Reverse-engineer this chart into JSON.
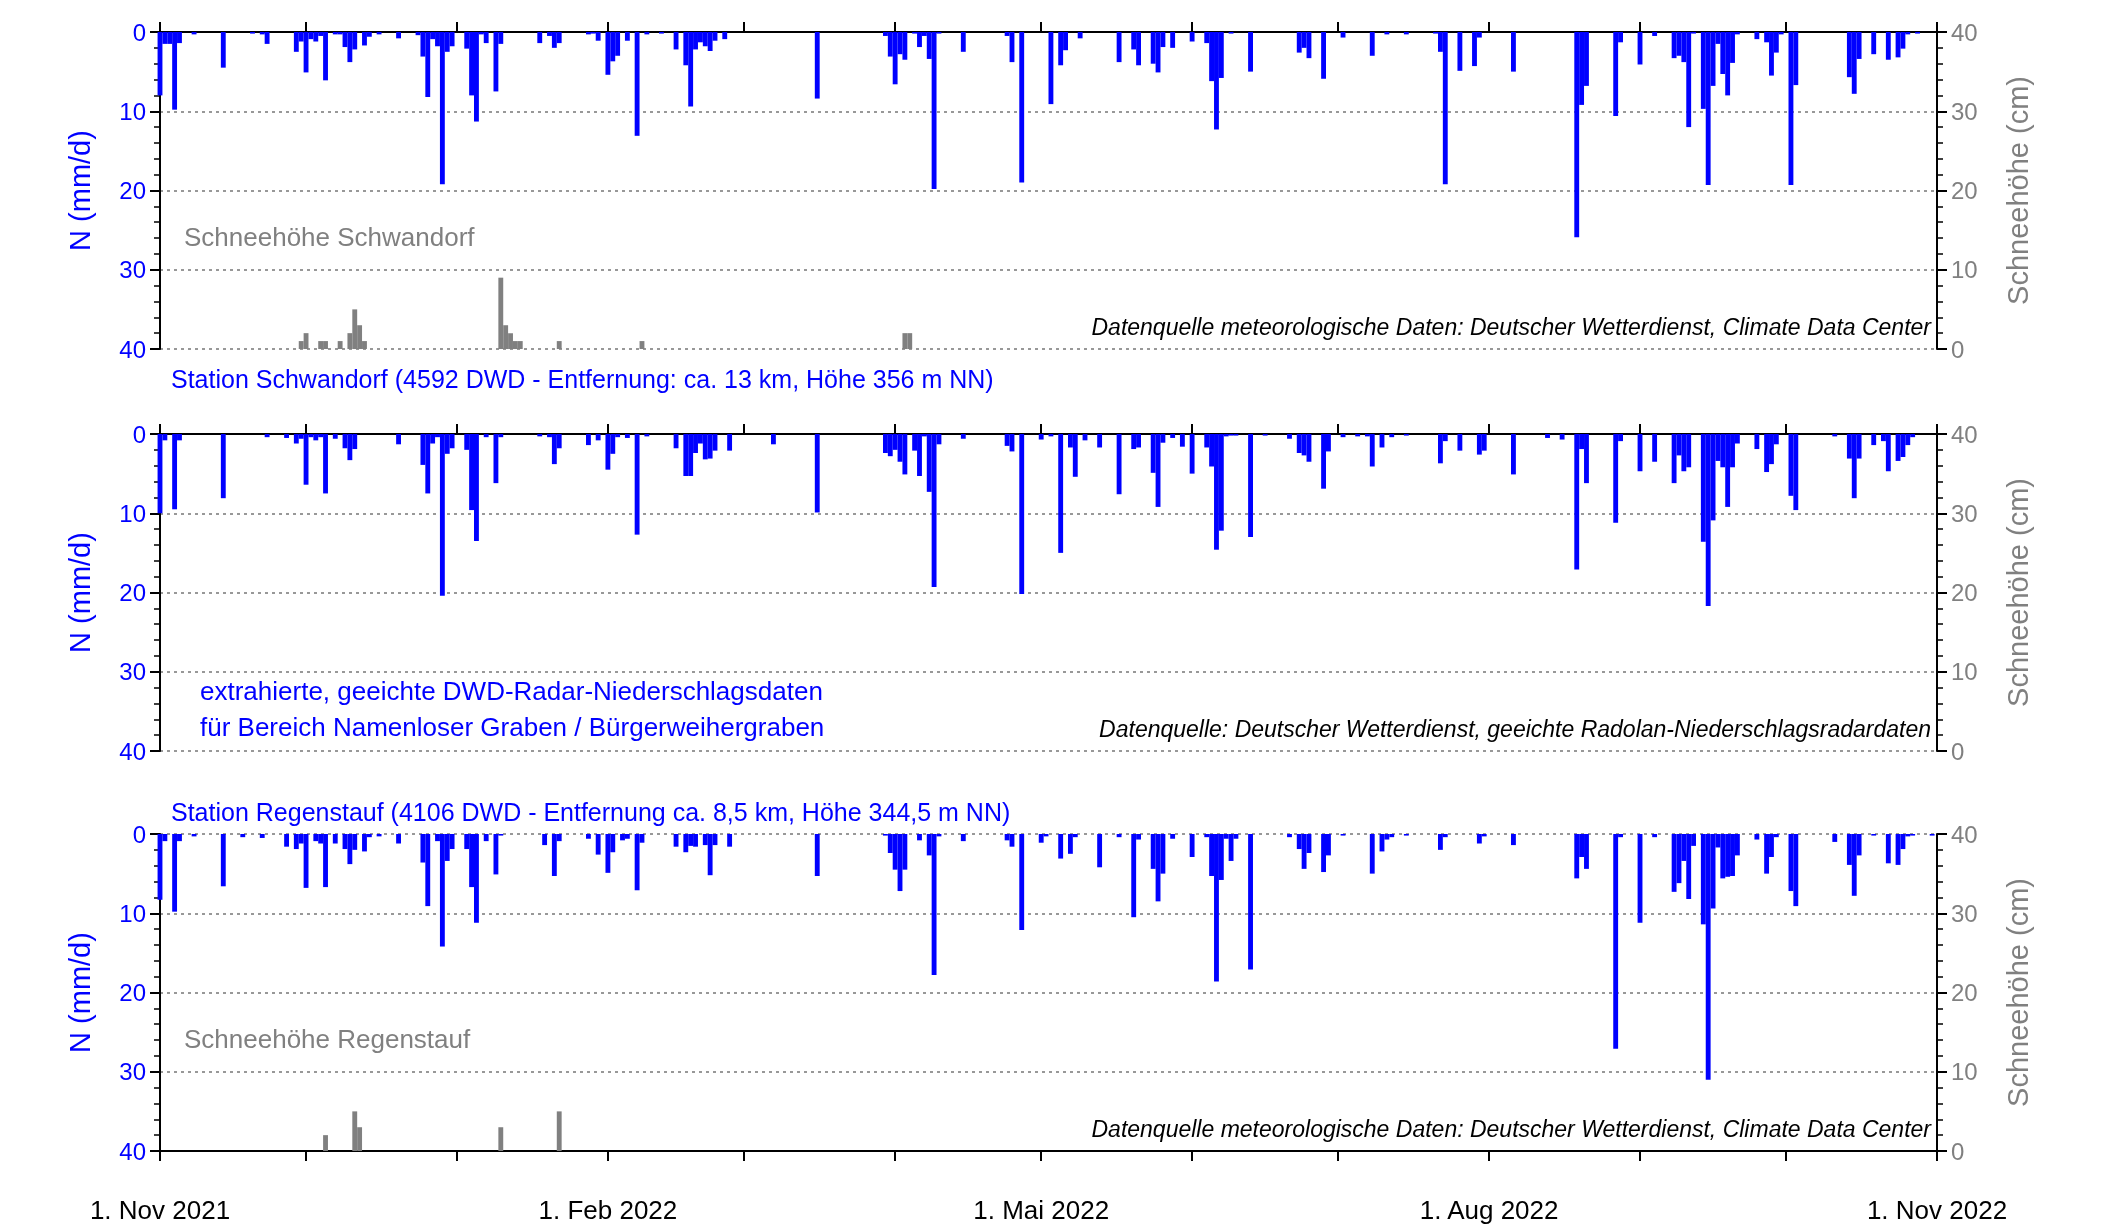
{
  "chart_data": [
    {
      "type": "bar",
      "title": "Station Schwandorf (4592 DWD - Entfernung: ca. 13 km, Höhe 356 m NN)",
      "ylabel": "N (mm/d)",
      "y2label": "Schneehöhe (cm)",
      "annotations": [
        "Schneehöhe Schwandorf",
        "Datenquelle meteorologische Daten: Deutscher Wetterdienst, Climate Data Center"
      ],
      "xlim": [
        "2021-11-01",
        "2022-11-01"
      ],
      "xticks": [
        {
          "value": "2021-11-01",
          "label": null
        },
        {
          "value": "2021-12-01",
          "label": null
        },
        {
          "value": "2022-01-01",
          "label": null
        },
        {
          "value": "2022-02-01",
          "label": null
        },
        {
          "value": "2022-03-01",
          "label": null
        },
        {
          "value": "2022-04-01",
          "label": null
        },
        {
          "value": "2022-05-01",
          "label": null
        },
        {
          "value": "2022-06-01",
          "label": null
        },
        {
          "value": "2022-07-01",
          "label": null
        },
        {
          "value": "2022-08-01",
          "label": null
        },
        {
          "value": "2022-09-01",
          "label": null
        },
        {
          "value": "2022-10-01",
          "label": null
        },
        {
          "value": "2022-11-01",
          "label": null
        }
      ],
      "ylim": [
        40,
        0
      ],
      "yticks": [
        0,
        10,
        20,
        30,
        40
      ],
      "y2lim": [
        0,
        40
      ],
      "y2ticks": [
        0,
        10,
        20,
        30,
        40
      ],
      "grid": "y",
      "tick_labels": "y",
      "series": [
        {
          "color": "#0000ff",
          "x": [
            "2021-11-01",
            "2021-11-02",
            "2021-11-03",
            "2021-11-04",
            "2021-11-05",
            "2021-11-08",
            "2021-11-14",
            "2021-11-20",
            "2021-11-22",
            "2021-11-23",
            "2021-11-29",
            "2021-11-30",
            "2021-12-01",
            "2021-12-02",
            "2021-12-03",
            "2021-12-04",
            "2021-12-05",
            "2021-12-07",
            "2021-12-08",
            "2021-12-09",
            "2021-12-10",
            "2021-12-11",
            "2021-12-13",
            "2021-12-14",
            "2021-12-16",
            "2021-12-20",
            "2021-12-24",
            "2021-12-25",
            "2021-12-26",
            "2021-12-27",
            "2021-12-28",
            "2021-12-29",
            "2021-12-30",
            "2021-12-31",
            "2022-01-03",
            "2022-01-04",
            "2022-01-05",
            "2022-01-06",
            "2022-01-07",
            "2022-01-09",
            "2022-01-10",
            "2022-01-18",
            "2022-01-20",
            "2022-01-21",
            "2022-01-22",
            "2022-01-28",
            "2022-01-29",
            "2022-01-30",
            "2022-02-01",
            "2022-02-02",
            "2022-02-03",
            "2022-02-05",
            "2022-02-07",
            "2022-02-09",
            "2022-02-12",
            "2022-02-15",
            "2022-02-17",
            "2022-02-18",
            "2022-02-19",
            "2022-02-20",
            "2022-02-21",
            "2022-02-22",
            "2022-02-23",
            "2022-02-25",
            "2022-03-16",
            "2022-03-30",
            "2022-03-31",
            "2022-04-01",
            "2022-04-02",
            "2022-04-03",
            "2022-04-05",
            "2022-04-06",
            "2022-04-07",
            "2022-04-08",
            "2022-04-09",
            "2022-04-10",
            "2022-04-15",
            "2022-04-24",
            "2022-04-25",
            "2022-04-27",
            "2022-05-03",
            "2022-05-05",
            "2022-05-06",
            "2022-05-09",
            "2022-05-17",
            "2022-05-20",
            "2022-05-21",
            "2022-05-24",
            "2022-05-25",
            "2022-05-26",
            "2022-05-28",
            "2022-06-01",
            "2022-06-04",
            "2022-06-05",
            "2022-06-06",
            "2022-06-07",
            "2022-06-09",
            "2022-06-13",
            "2022-06-23",
            "2022-06-24",
            "2022-06-25",
            "2022-06-28",
            "2022-07-02",
            "2022-07-08",
            "2022-07-11",
            "2022-07-15",
            "2022-07-21",
            "2022-07-22",
            "2022-07-23",
            "2022-07-26",
            "2022-07-29",
            "2022-07-30",
            "2022-08-06",
            "2022-08-19",
            "2022-08-20",
            "2022-08-21",
            "2022-08-27",
            "2022-08-28",
            "2022-09-01",
            "2022-09-04",
            "2022-09-08",
            "2022-09-09",
            "2022-09-10",
            "2022-09-11",
            "2022-09-12",
            "2022-09-14",
            "2022-09-15",
            "2022-09-16",
            "2022-09-17",
            "2022-09-18",
            "2022-09-19",
            "2022-09-20",
            "2022-09-21",
            "2022-09-25",
            "2022-09-27",
            "2022-09-28",
            "2022-09-29",
            "2022-09-30",
            "2022-10-02",
            "2022-10-03",
            "2022-10-14",
            "2022-10-15",
            "2022-10-16",
            "2022-10-19",
            "2022-10-22",
            "2022-10-24",
            "2022-10-25",
            "2022-10-26",
            "2022-10-28"
          ],
          "values": [
            8.0,
            1.5,
            1.5,
            9.8,
            1.4,
            0.3,
            4.5,
            0.2,
            0.3,
            1.5,
            2.5,
            1.2,
            5.1,
            0.9,
            1.2,
            0.5,
            6.1,
            0.3,
            0.3,
            1.9,
            3.8,
            2.2,
            1.7,
            0.6,
            0.3,
            0.8,
            0.4,
            3.1,
            8.2,
            0.9,
            1.8,
            19.2,
            2.5,
            1.8,
            2.1,
            8.0,
            11.3,
            0.3,
            1.4,
            7.5,
            1.5,
            1.4,
            0.5,
            2.0,
            1.4,
            0.3,
            0.2,
            1.1,
            5.4,
            3.7,
            3.0,
            1.1,
            13.1,
            0.3,
            0.2,
            2.2,
            4.2,
            9.4,
            2.2,
            1.3,
            1.8,
            2.4,
            1.1,
            0.9,
            8.4,
            0.5,
            3.1,
            6.6,
            2.8,
            3.5,
            0.2,
            1.9,
            0.5,
            3.4,
            19.8,
            0.2,
            2.5,
            0.5,
            3.8,
            19.0,
            9.1,
            4.2,
            2.3,
            0.8,
            3.8,
            2.2,
            4.2,
            4.0,
            5.1,
            1.9,
            2.0,
            1.2,
            1.4,
            6.2,
            12.3,
            5.8,
            0.2,
            5.0,
            2.6,
            2.0,
            3.3,
            5.9,
            0.7,
            3.0,
            0.3,
            0.3,
            0.2,
            2.5,
            19.2,
            4.9,
            4.3,
            0.7,
            5.0,
            25.9,
            9.2,
            6.8,
            10.6,
            1.3,
            4.1,
            0.5,
            3.3,
            3.0,
            3.8,
            12.0,
            0.2,
            9.7,
            19.3,
            6.8,
            1.5,
            5.3,
            8.0,
            3.9,
            0.3,
            0.9,
            1.3,
            5.5,
            2.6,
            0.3,
            19.3,
            6.7,
            5.7,
            7.8,
            3.4,
            2.8,
            3.5,
            3.2,
            2.1,
            0.3,
            0.2
          ]
        },
        {
          "color": "#808080",
          "axis": "y2",
          "x": [
            "2021-11-30",
            "2021-12-01",
            "2021-12-04",
            "2021-12-05",
            "2021-12-08",
            "2021-12-10",
            "2021-12-11",
            "2021-12-12",
            "2021-12-13",
            "2022-01-10",
            "2022-01-11",
            "2022-01-12",
            "2022-01-13",
            "2022-01-14",
            "2022-01-22",
            "2022-02-08",
            "2022-04-03",
            "2022-04-04"
          ],
          "values": [
            1,
            2,
            1,
            1,
            1,
            2,
            5,
            3,
            1,
            9,
            3,
            2,
            1,
            1,
            1,
            1,
            2,
            2
          ]
        }
      ]
    },
    {
      "type": "bar",
      "ylabel": "N (mm/d)",
      "y2label": "Schneehöhe (cm)",
      "annotations": [
        "extrahierte, geeichte DWD-Radar-Niederschlagsdaten",
        "für Bereich Namenloser Graben / Bürgerweihergraben",
        "Datenquelle: Deutscher Wetterdienst, geeichte Radolan-Niederschlagsradardaten"
      ],
      "xlim": [
        "2021-11-01",
        "2022-11-01"
      ],
      "xticks": [
        {
          "value": "2021-11-01",
          "label": null
        },
        {
          "value": "2021-12-01",
          "label": null
        },
        {
          "value": "2022-01-01",
          "label": null
        },
        {
          "value": "2022-02-01",
          "label": null
        },
        {
          "value": "2022-03-01",
          "label": null
        },
        {
          "value": "2022-04-01",
          "label": null
        },
        {
          "value": "2022-05-01",
          "label": null
        },
        {
          "value": "2022-06-01",
          "label": null
        },
        {
          "value": "2022-07-01",
          "label": null
        },
        {
          "value": "2022-08-01",
          "label": null
        },
        {
          "value": "2022-09-01",
          "label": null
        },
        {
          "value": "2022-10-01",
          "label": null
        },
        {
          "value": "2022-11-01",
          "label": null
        }
      ],
      "ylim": [
        40,
        0
      ],
      "yticks": [
        0,
        10,
        20,
        30,
        40
      ],
      "y2lim": [
        0,
        40
      ],
      "y2ticks": [
        0,
        10,
        20,
        30,
        40
      ],
      "grid": "y",
      "tick_labels": "y",
      "series": [
        {
          "color": "#0000ff",
          "x": [
            "2021-11-01",
            "2021-11-02",
            "2021-11-04",
            "2021-11-05",
            "2021-11-14",
            "2021-11-23",
            "2021-11-27",
            "2021-11-29",
            "2021-11-30",
            "2021-12-01",
            "2021-12-02",
            "2021-12-03",
            "2021-12-04",
            "2021-12-05",
            "2021-12-07",
            "2021-12-09",
            "2021-12-10",
            "2021-12-11",
            "2021-12-20",
            "2021-12-25",
            "2021-12-26",
            "2021-12-27",
            "2021-12-28",
            "2021-12-29",
            "2021-12-30",
            "2021-12-31",
            "2022-01-03",
            "2022-01-04",
            "2022-01-05",
            "2022-01-07",
            "2022-01-09",
            "2022-01-10",
            "2022-01-18",
            "2022-01-20",
            "2022-01-21",
            "2022-01-22",
            "2022-01-28",
            "2022-01-30",
            "2022-02-01",
            "2022-02-02",
            "2022-02-03",
            "2022-02-05",
            "2022-02-07",
            "2022-02-09",
            "2022-02-15",
            "2022-02-17",
            "2022-02-18",
            "2022-02-19",
            "2022-02-20",
            "2022-02-21",
            "2022-02-22",
            "2022-02-23",
            "2022-02-26",
            "2022-03-07",
            "2022-03-16",
            "2022-03-30",
            "2022-03-31",
            "2022-04-01",
            "2022-04-02",
            "2022-04-03",
            "2022-04-05",
            "2022-04-06",
            "2022-04-07",
            "2022-04-08",
            "2022-04-09",
            "2022-04-10",
            "2022-04-15",
            "2022-04-24",
            "2022-04-25",
            "2022-04-27",
            "2022-05-01",
            "2022-05-03",
            "2022-05-05",
            "2022-05-07",
            "2022-05-08",
            "2022-05-10",
            "2022-05-13",
            "2022-05-17",
            "2022-05-20",
            "2022-05-21",
            "2022-05-24",
            "2022-05-25",
            "2022-05-26",
            "2022-05-28",
            "2022-05-30",
            "2022-06-01",
            "2022-06-04",
            "2022-06-05",
            "2022-06-06",
            "2022-06-07",
            "2022-06-08",
            "2022-06-09",
            "2022-06-10",
            "2022-06-13",
            "2022-06-16",
            "2022-06-21",
            "2022-06-23",
            "2022-06-24",
            "2022-06-25",
            "2022-06-28",
            "2022-06-29",
            "2022-07-02",
            "2022-07-05",
            "2022-07-07",
            "2022-07-08",
            "2022-07-10",
            "2022-07-12",
            "2022-07-15",
            "2022-07-22",
            "2022-07-23",
            "2022-07-26",
            "2022-07-30",
            "2022-07-31",
            "2022-08-06",
            "2022-08-13",
            "2022-08-16",
            "2022-08-19",
            "2022-08-20",
            "2022-08-21",
            "2022-08-27",
            "2022-08-28",
            "2022-09-01",
            "2022-09-04",
            "2022-09-08",
            "2022-09-09",
            "2022-09-10",
            "2022-09-11",
            "2022-09-14",
            "2022-09-15",
            "2022-09-16",
            "2022-09-17",
            "2022-09-18",
            "2022-09-19",
            "2022-09-20",
            "2022-09-21",
            "2022-09-25",
            "2022-09-27",
            "2022-09-28",
            "2022-09-29",
            "2022-10-02",
            "2022-10-03",
            "2022-10-11",
            "2022-10-14",
            "2022-10-15",
            "2022-10-16",
            "2022-10-19",
            "2022-10-21",
            "2022-10-22",
            "2022-10-24",
            "2022-10-25",
            "2022-10-26",
            "2022-10-27"
          ],
          "values": [
            10.0,
            0.8,
            9.5,
            0.8,
            8.1,
            0.4,
            0.5,
            1.2,
            0.6,
            6.4,
            0.4,
            0.8,
            0.4,
            7.5,
            0.6,
            1.8,
            3.3,
            1.9,
            1.3,
            3.9,
            7.5,
            1.2,
            0.4,
            20.4,
            2.5,
            1.8,
            2.0,
            9.6,
            13.5,
            0.4,
            6.2,
            0.4,
            0.3,
            0.4,
            3.8,
            1.8,
            1.4,
            0.8,
            4.5,
            2.5,
            0.4,
            0.5,
            12.7,
            0.3,
            1.8,
            5.3,
            5.3,
            2.4,
            1.2,
            3.2,
            3.1,
            2.1,
            2.1,
            1.3,
            9.9,
            2.4,
            2.8,
            2.0,
            3.5,
            5.1,
            2.1,
            5.3,
            0.3,
            7.3,
            19.3,
            1.3,
            0.6,
            1.5,
            2.2,
            20.2,
            0.7,
            0.3,
            15.0,
            1.7,
            5.4,
            0.8,
            1.7,
            7.6,
            1.9,
            1.7,
            4.9,
            9.2,
            1.1,
            0.5,
            1.6,
            5.0,
            1.7,
            4.1,
            14.6,
            12.2,
            0.3,
            0.2,
            0.2,
            13.0,
            0.2,
            0.6,
            2.4,
            2.7,
            3.5,
            6.9,
            2.2,
            0.4,
            0.3,
            0.3,
            4.1,
            1.7,
            0.4,
            0.2,
            3.7,
            0.9,
            2.1,
            2.6,
            2.1,
            5.1,
            0.5,
            0.7,
            17.1,
            1.9,
            6.2,
            11.2,
            0.9,
            4.7,
            3.5,
            6.2,
            2.7,
            4.7,
            4.2,
            13.6,
            21.7,
            10.9,
            3.4,
            4.2,
            9.2,
            4.2,
            1.2,
            1.9,
            4.8,
            3.8,
            1.3,
            7.8,
            9.6,
            0.3,
            3.1,
            8.1,
            3.1,
            1.4,
            0.9,
            4.7,
            3.4,
            2.9,
            1.4,
            0.4
          ]
        }
      ]
    },
    {
      "type": "bar",
      "title": "Station Regenstauf (4106 DWD - Entfernung ca. 8,5 km, Höhe 344,5 m NN)",
      "ylabel": "N (mm/d)",
      "y2label": "Schneehöhe (cm)",
      "annotations": [
        "Schneehöhe Regenstauf",
        "Datenquelle meteorologische Daten: Deutscher Wetterdienst, Climate Data Center"
      ],
      "xlim": [
        "2021-11-01",
        "2022-11-01"
      ],
      "xticks": [
        {
          "value": "2021-11-01",
          "label": "1. Nov 2021"
        },
        {
          "value": "2021-12-01",
          "label": null
        },
        {
          "value": "2022-01-01",
          "label": null
        },
        {
          "value": "2022-02-01",
          "label": "1. Feb 2022"
        },
        {
          "value": "2022-03-01",
          "label": null
        },
        {
          "value": "2022-04-01",
          "label": null
        },
        {
          "value": "2022-05-01",
          "label": "1. Mai 2022"
        },
        {
          "value": "2022-06-01",
          "label": null
        },
        {
          "value": "2022-07-01",
          "label": null
        },
        {
          "value": "2022-08-01",
          "label": "1. Aug 2022"
        },
        {
          "value": "2022-09-01",
          "label": null
        },
        {
          "value": "2022-10-01",
          "label": null
        },
        {
          "value": "2022-11-01",
          "label": "1. Nov 2022"
        }
      ],
      "ylim": [
        40,
        0
      ],
      "yticks": [
        0,
        10,
        20,
        30,
        40
      ],
      "y2lim": [
        0,
        40
      ],
      "y2ticks": [
        0,
        10,
        20,
        30,
        40
      ],
      "grid": "y",
      "series": [
        {
          "color": "#0000ff",
          "x": [
            "2021-11-01",
            "2021-11-02",
            "2021-11-04",
            "2021-11-05",
            "2021-11-08",
            "2021-11-14",
            "2021-11-18",
            "2021-11-22",
            "2021-11-27",
            "2021-11-29",
            "2021-11-30",
            "2021-12-01",
            "2021-12-03",
            "2021-12-04",
            "2021-12-05",
            "2021-12-07",
            "2021-12-09",
            "2021-12-10",
            "2021-12-11",
            "2021-12-13",
            "2021-12-14",
            "2021-12-16",
            "2021-12-20",
            "2021-12-25",
            "2021-12-26",
            "2021-12-28",
            "2021-12-29",
            "2021-12-30",
            "2021-12-31",
            "2022-01-03",
            "2022-01-04",
            "2022-01-05",
            "2022-01-07",
            "2022-01-09",
            "2022-01-10",
            "2022-01-19",
            "2022-01-21",
            "2022-01-22",
            "2022-01-28",
            "2022-01-30",
            "2022-02-01",
            "2022-02-02",
            "2022-02-04",
            "2022-02-05",
            "2022-02-07",
            "2022-02-08",
            "2022-02-15",
            "2022-02-17",
            "2022-02-18",
            "2022-02-19",
            "2022-02-21",
            "2022-02-22",
            "2022-02-23",
            "2022-02-26",
            "2022-03-16",
            "2022-03-30",
            "2022-03-31",
            "2022-04-01",
            "2022-04-02",
            "2022-04-03",
            "2022-04-06",
            "2022-04-08",
            "2022-04-09",
            "2022-04-10",
            "2022-04-15",
            "2022-04-24",
            "2022-04-25",
            "2022-04-27",
            "2022-05-01",
            "2022-05-02",
            "2022-05-05",
            "2022-05-07",
            "2022-05-08",
            "2022-05-13",
            "2022-05-17",
            "2022-05-20",
            "2022-05-21",
            "2022-05-24",
            "2022-05-25",
            "2022-05-26",
            "2022-05-28",
            "2022-06-01",
            "2022-06-04",
            "2022-06-05",
            "2022-06-06",
            "2022-06-07",
            "2022-06-08",
            "2022-06-09",
            "2022-06-10",
            "2022-06-13",
            "2022-06-21",
            "2022-06-23",
            "2022-06-24",
            "2022-06-25",
            "2022-06-28",
            "2022-06-29",
            "2022-07-02",
            "2022-07-08",
            "2022-07-10",
            "2022-07-11",
            "2022-07-12",
            "2022-07-15",
            "2022-07-22",
            "2022-07-23",
            "2022-07-30",
            "2022-07-31",
            "2022-08-06",
            "2022-08-19",
            "2022-08-20",
            "2022-08-21",
            "2022-08-27",
            "2022-08-28",
            "2022-09-01",
            "2022-09-04",
            "2022-09-08",
            "2022-09-09",
            "2022-09-10",
            "2022-09-11",
            "2022-09-12",
            "2022-09-14",
            "2022-09-15",
            "2022-09-16",
            "2022-09-17",
            "2022-09-18",
            "2022-09-19",
            "2022-09-20",
            "2022-09-21",
            "2022-09-25",
            "2022-09-27",
            "2022-09-28",
            "2022-09-29",
            "2022-10-02",
            "2022-10-03",
            "2022-10-11",
            "2022-10-14",
            "2022-10-15",
            "2022-10-16",
            "2022-10-19",
            "2022-10-22",
            "2022-10-24",
            "2022-10-25",
            "2022-10-26",
            "2022-10-27",
            "2022-10-31"
          ],
          "values": [
            8.3,
            0.9,
            9.8,
            0.9,
            0.3,
            6.6,
            0.4,
            0.5,
            1.6,
            1.9,
            1.2,
            6.8,
            0.9,
            1.2,
            6.7,
            1.2,
            1.9,
            3.8,
            2.0,
            2.2,
            0.4,
            0.3,
            1.2,
            3.6,
            9.1,
            0.9,
            14.2,
            3.4,
            1.9,
            1.9,
            6.7,
            11.2,
            0.9,
            5.1,
            0.2,
            1.4,
            5.3,
            0.9,
            0.6,
            2.6,
            4.9,
            2.3,
            0.8,
            0.6,
            7.1,
            1.1,
            1.6,
            2.3,
            1.5,
            1.6,
            1.4,
            5.2,
            1.4,
            1.6,
            5.3,
            0.2,
            2.4,
            4.5,
            7.2,
            4.5,
            0.8,
            2.7,
            17.8,
            0.3,
            0.9,
            0.8,
            1.6,
            12.1,
            1.1,
            0.3,
            3.1,
            2.5,
            0.4,
            4.2,
            0.4,
            10.5,
            0.7,
            4.4,
            8.5,
            5.0,
            0.6,
            2.9,
            0.4,
            5.3,
            18.6,
            5.8,
            0.6,
            3.4,
            0.6,
            17.1,
            0.4,
            1.9,
            4.4,
            2.4,
            4.8,
            2.7,
            0.2,
            5.0,
            2.2,
            0.7,
            0.4,
            0.2,
            2.0,
            0.4,
            1.2,
            0.3,
            1.4,
            5.6,
            2.9,
            4.4,
            27.1,
            0.4,
            11.2,
            0.4,
            7.3,
            6.2,
            3.4,
            8.2,
            1.5,
            11.4,
            31.0,
            9.4,
            1.7,
            5.6,
            5.4,
            5.3,
            2.7,
            0.7,
            5.0,
            2.9,
            0.4,
            7.2,
            9.1,
            1.0,
            3.9,
            7.8,
            2.7,
            0.2,
            3.7,
            3.9,
            1.9,
            0.3,
            0.2,
            0.2
          ]
        },
        {
          "color": "#808080",
          "axis": "y2",
          "x": [
            "2021-12-05",
            "2021-12-11",
            "2021-12-12",
            "2022-01-10",
            "2022-01-22"
          ],
          "values": [
            2,
            5,
            3,
            3,
            5
          ]
        }
      ]
    }
  ]
}
